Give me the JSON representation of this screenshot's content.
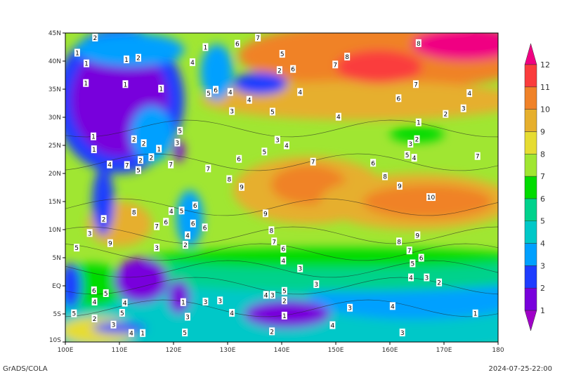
{
  "map": {
    "lon_range": [
      100,
      180
    ],
    "lat_range": [
      -10,
      45
    ],
    "lon_ticks": [
      {
        "v": 100,
        "label": "100E"
      },
      {
        "v": 110,
        "label": "110E"
      },
      {
        "v": 120,
        "label": "120E"
      },
      {
        "v": 130,
        "label": "130E"
      },
      {
        "v": 140,
        "label": "140E"
      },
      {
        "v": 150,
        "label": "150E"
      },
      {
        "v": 160,
        "label": "160E"
      },
      {
        "v": 170,
        "label": "170E"
      },
      {
        "v": 180,
        "label": "180"
      }
    ],
    "lat_ticks": [
      {
        "v": 45,
        "label": "45N"
      },
      {
        "v": 40,
        "label": "40N"
      },
      {
        "v": 35,
        "label": "35N"
      },
      {
        "v": 30,
        "label": "30N"
      },
      {
        "v": 25,
        "label": "25N"
      },
      {
        "v": 20,
        "label": "20N"
      },
      {
        "v": 15,
        "label": "15N"
      },
      {
        "v": 10,
        "label": "10N"
      },
      {
        "v": 5,
        "label": "5N"
      },
      {
        "v": 0,
        "label": "EQ"
      },
      {
        "v": -5,
        "label": "5S"
      },
      {
        "v": -10,
        "label": "10S"
      }
    ],
    "background_level": 7,
    "shaded_regions": [
      {
        "lon": 140,
        "lat": -5,
        "rx": 60,
        "ry": 8,
        "level": 4
      },
      {
        "lon": 165,
        "lat": -2,
        "rx": 20,
        "ry": 4,
        "level": 3
      },
      {
        "lon": 150,
        "lat": 2,
        "rx": 40,
        "ry": 3,
        "level": 5
      },
      {
        "lon": 150,
        "lat": 5,
        "rx": 35,
        "ry": 1.8,
        "level": 6
      },
      {
        "lon": 105,
        "lat": 0,
        "rx": 6,
        "ry": 4,
        "level": 6
      },
      {
        "lon": 106,
        "lat": -8,
        "rx": 7,
        "ry": 2.5,
        "level": 8
      },
      {
        "lon": 160,
        "lat": 41,
        "rx": 28,
        "ry": 6,
        "level": 10
      },
      {
        "lon": 155,
        "lat": 33,
        "rx": 30,
        "ry": 3.5,
        "level": 9
      },
      {
        "lon": 158,
        "lat": 39,
        "rx": 8,
        "ry": 3,
        "level": 11
      },
      {
        "lon": 174,
        "lat": 43,
        "rx": 10,
        "ry": 3,
        "level": 12
      },
      {
        "lon": 145,
        "lat": 17,
        "rx": 14,
        "ry": 6,
        "level": 9
      },
      {
        "lon": 145,
        "lat": 18,
        "rx": 7,
        "ry": 3.5,
        "level": 10
      },
      {
        "lon": 165,
        "lat": 15,
        "rx": 18,
        "ry": 5,
        "level": 9
      },
      {
        "lon": 167,
        "lat": 15,
        "rx": 12,
        "ry": 3,
        "level": 10
      },
      {
        "lon": 165,
        "lat": 27,
        "rx": 5,
        "ry": 1.5,
        "level": 6
      },
      {
        "lon": 110,
        "lat": 11,
        "rx": 6,
        "ry": 4,
        "level": 9
      },
      {
        "lon": 110,
        "lat": 33,
        "rx": 12,
        "ry": 13,
        "level": 2
      },
      {
        "lon": 110,
        "lat": 33,
        "rx": 9,
        "ry": 10,
        "level": 1
      },
      {
        "lon": 112,
        "lat": 42,
        "rx": 10,
        "ry": 3,
        "level": 3
      },
      {
        "lon": 116,
        "lat": 27,
        "rx": 4,
        "ry": 5,
        "level": 3
      },
      {
        "lon": 128,
        "lat": 38,
        "rx": 3,
        "ry": 5,
        "level": 3
      },
      {
        "lon": 136,
        "lat": 36,
        "rx": 5,
        "ry": 2,
        "level": 2
      },
      {
        "lon": 114,
        "lat": 1,
        "rx": 5,
        "ry": 4,
        "level": 1
      },
      {
        "lon": 141,
        "lat": -5,
        "rx": 8,
        "ry": 2.5,
        "level": 1
      },
      {
        "lon": 121,
        "lat": -2,
        "rx": 2,
        "ry": 3,
        "level": 1
      },
      {
        "lon": 101,
        "lat": 0,
        "rx": 2,
        "ry": 4,
        "level": 2
      },
      {
        "lon": 123,
        "lat": 12,
        "rx": 2.5,
        "ry": 5,
        "level": 3
      },
      {
        "lon": 107,
        "lat": 15,
        "rx": 2,
        "ry": 6,
        "level": 2
      },
      {
        "lon": 121,
        "lat": 24,
        "rx": 1,
        "ry": 2,
        "level": 1
      },
      {
        "lon": 110,
        "lat": -7.5,
        "rx": 5,
        "ry": 1,
        "level": 2
      }
    ],
    "contour_labels": [
      {
        "lon": 105.5,
        "lat": 44.6,
        "v": "2"
      },
      {
        "lon": 102.2,
        "lat": 41.5,
        "v": "1"
      },
      {
        "lon": 113.5,
        "lat": 40.6,
        "v": "2"
      },
      {
        "lon": 123.5,
        "lat": 39.8,
        "v": "4"
      },
      {
        "lon": 131.8,
        "lat": 43.1,
        "v": "6"
      },
      {
        "lon": 140.1,
        "lat": 41.3,
        "v": "5"
      },
      {
        "lon": 142.1,
        "lat": 38.6,
        "v": "6"
      },
      {
        "lon": 149.9,
        "lat": 39.4,
        "v": "7"
      },
      {
        "lon": 152.1,
        "lat": 40.8,
        "v": "8"
      },
      {
        "lon": 165.3,
        "lat": 43.2,
        "v": "8"
      },
      {
        "lon": 164.8,
        "lat": 35.9,
        "v": "7"
      },
      {
        "lon": 161.6,
        "lat": 33.4,
        "v": "6"
      },
      {
        "lon": 143.4,
        "lat": 34.5,
        "v": "4"
      },
      {
        "lon": 138.3,
        "lat": 31,
        "v": "5"
      },
      {
        "lon": 150.5,
        "lat": 30.1,
        "v": "4"
      },
      {
        "lon": 170.3,
        "lat": 30.6,
        "v": "2"
      },
      {
        "lon": 173.6,
        "lat": 31.6,
        "v": "3"
      },
      {
        "lon": 174.7,
        "lat": 32.8,
        "v": "4"
      },
      {
        "lon": 165.3,
        "lat": 29.1,
        "v": "1"
      },
      {
        "lon": 165,
        "lat": 26.1,
        "v": "2"
      },
      {
        "lon": 163.8,
        "lat": 25.3,
        "v": "3"
      },
      {
        "lon": 164.5,
        "lat": 24.3,
        "v": "4"
      },
      {
        "lon": 163.2,
        "lat": 23.3,
        "v": "5"
      },
      {
        "lon": 176.2,
        "lat": 23.1,
        "v": "7"
      },
      {
        "lon": 139.2,
        "lat": 26,
        "v": "3"
      },
      {
        "lon": 140.9,
        "lat": 25,
        "v": "4"
      },
      {
        "lon": 136.8,
        "lat": 23.9,
        "v": "5"
      },
      {
        "lon": 132.1,
        "lat": 22.6,
        "v": "6"
      },
      {
        "lon": 145.8,
        "lat": 22.1,
        "v": "7"
      },
      {
        "lon": 156.9,
        "lat": 21.9,
        "v": "6"
      },
      {
        "lon": 159.1,
        "lat": 19.5,
        "v": "8"
      },
      {
        "lon": 161.8,
        "lat": 17.8,
        "v": "9"
      },
      {
        "lon": 167.6,
        "lat": 15.8,
        "v": "10"
      },
      {
        "lon": 165.1,
        "lat": 9,
        "v": "9"
      },
      {
        "lon": 161.7,
        "lat": 7.9,
        "v": "8"
      },
      {
        "lon": 163.6,
        "lat": 6.3,
        "v": "7"
      },
      {
        "lon": 165.8,
        "lat": 5,
        "v": "6"
      },
      {
        "lon": 164.2,
        "lat": 4,
        "v": "5"
      },
      {
        "lon": 163.9,
        "lat": 3,
        "v": "4"
      },
      {
        "lon": 166.8,
        "lat": 1.5,
        "v": "3"
      },
      {
        "lon": 169.1,
        "lat": 0.6,
        "v": "2"
      },
      {
        "lon": 175.8,
        "lat": -4.9,
        "v": "1"
      },
      {
        "lon": 160.5,
        "lat": -3.6,
        "v": "4"
      },
      {
        "lon": 162.3,
        "lat": -8.3,
        "v": "3"
      },
      {
        "lon": 152.6,
        "lat": -3.9,
        "v": "3"
      },
      {
        "lon": 149.4,
        "lat": -7,
        "v": "4"
      },
      {
        "lon": 146.4,
        "lat": 0.3,
        "v": "3"
      },
      {
        "lon": 143.4,
        "lat": 3.1,
        "v": "3"
      },
      {
        "lon": 140.3,
        "lat": 4.5,
        "v": "4"
      },
      {
        "lon": 140.3,
        "lat": 6.6,
        "v": "6"
      },
      {
        "lon": 138.6,
        "lat": 7.9,
        "v": "7"
      },
      {
        "lon": 138.1,
        "lat": 9.9,
        "v": "8"
      },
      {
        "lon": 137,
        "lat": 12.9,
        "v": "9"
      },
      {
        "lon": 132.6,
        "lat": 17.6,
        "v": "9"
      },
      {
        "lon": 130.3,
        "lat": 19,
        "v": "8"
      },
      {
        "lon": 126.4,
        "lat": 20.9,
        "v": "7"
      },
      {
        "lon": 108.3,
        "lat": 7.6,
        "v": "9"
      },
      {
        "lon": 112.7,
        "lat": 13.1,
        "v": "8"
      },
      {
        "lon": 102.1,
        "lat": 6.8,
        "v": "5"
      },
      {
        "lon": 104.5,
        "lat": 9.4,
        "v": "3"
      },
      {
        "lon": 107.1,
        "lat": 11.9,
        "v": "2"
      },
      {
        "lon": 116.9,
        "lat": 6.8,
        "v": "3"
      },
      {
        "lon": 101.6,
        "lat": -4.9,
        "v": "5"
      },
      {
        "lon": 105.4,
        "lat": -5.8,
        "v": "2"
      },
      {
        "lon": 108.9,
        "lat": -6.9,
        "v": "3"
      },
      {
        "lon": 112.2,
        "lat": -8.4,
        "v": "4"
      },
      {
        "lon": 114.3,
        "lat": -8.4,
        "v": "1"
      },
      {
        "lon": 122.1,
        "lat": -8.3,
        "v": "5"
      },
      {
        "lon": 138.2,
        "lat": -8.1,
        "v": "2"
      },
      {
        "lon": 140.5,
        "lat": -0.9,
        "v": "5"
      },
      {
        "lon": 140.5,
        "lat": -2.6,
        "v": "2"
      },
      {
        "lon": 140.5,
        "lat": -3.8,
        "v": "1"
      },
      {
        "lon": 137.1,
        "lat": -1.6,
        "v": "4"
      },
      {
        "lon": 138.3,
        "lat": -1.6,
        "v": "3"
      },
      {
        "lon": 130.8,
        "lat": -4.8,
        "v": "4"
      },
      {
        "lon": 128.6,
        "lat": -2.6,
        "v": "3"
      },
      {
        "lon": 117.7,
        "lat": 35.1,
        "v": "1"
      },
      {
        "lon": 111.1,
        "lat": 35.9,
        "v": "1"
      },
      {
        "lon": 103.8,
        "lat": 36.1,
        "v": "1"
      },
      {
        "lon": 111.3,
        "lat": 40.3,
        "v": "1"
      },
      {
        "lon": 125.9,
        "lat": 42.5,
        "v": "1"
      },
      {
        "lon": 103.9,
        "lat": 39.6,
        "v": "1"
      },
      {
        "lon": 105.2,
        "lat": 26.6,
        "v": "1"
      },
      {
        "lon": 105.3,
        "lat": 24.3,
        "v": "1"
      },
      {
        "lon": 112.7,
        "lat": 26.1,
        "v": "2"
      },
      {
        "lon": 114.5,
        "lat": 25.4,
        "v": "2"
      },
      {
        "lon": 117.3,
        "lat": 24.4,
        "v": "1"
      },
      {
        "lon": 108.2,
        "lat": 21.6,
        "v": "4"
      },
      {
        "lon": 111.4,
        "lat": 21.5,
        "v": "7"
      },
      {
        "lon": 119.5,
        "lat": 21.6,
        "v": "7"
      },
      {
        "lon": 126.5,
        "lat": 34.3,
        "v": "5"
      },
      {
        "lon": 127.8,
        "lat": 34.9,
        "v": "6"
      },
      {
        "lon": 130.5,
        "lat": 34.5,
        "v": "4"
      },
      {
        "lon": 130.8,
        "lat": 31.1,
        "v": "3"
      },
      {
        "lon": 134,
        "lat": 33.1,
        "v": "4"
      },
      {
        "lon": 135.6,
        "lat": 44.5,
        "v": "7"
      },
      {
        "lon": 139.6,
        "lat": 38.4,
        "v": "2"
      },
      {
        "lon": 116.9,
        "lat": 10.6,
        "v": "7"
      },
      {
        "lon": 118.6,
        "lat": 11.4,
        "v": "6"
      },
      {
        "lon": 119.6,
        "lat": 11.8,
        "v": "4"
      },
      {
        "lon": 121.5,
        "lat": 13.4,
        "v": "5"
      },
      {
        "lon": 124,
        "lat": 14.3,
        "v": "6"
      },
      {
        "lon": 122.6,
        "lat": 9,
        "v": "4"
      },
      {
        "lon": 123.6,
        "lat": 9.6,
        "v": "6"
      },
      {
        "lon": 125.8,
        "lat": 10.4,
        "v": "6"
      },
      {
        "lon": 122.2,
        "lat": 7.3,
        "v": "2"
      },
      {
        "lon": 125.9,
        "lat": -2.8,
        "v": "3"
      },
      {
        "lon": 122.6,
        "lat": -5.5,
        "v": "3"
      },
      {
        "lon": 121.8,
        "lat": -4.4,
        "v": "1"
      },
      {
        "lon": 105.4,
        "lat": -2.8,
        "v": "4"
      },
      {
        "lon": 105.3,
        "lat": -0.8,
        "v": "6"
      },
      {
        "lon": 106.2,
        "lat": -1.3,
        "v": "5"
      },
      {
        "lon": 111,
        "lat": -3,
        "v": "4"
      },
      {
        "lon": 110.5,
        "lat": -3.3,
        "v": "5"
      },
      {
        "lon": 121.2,
        "lat": 27.6,
        "v": "5"
      },
      {
        "lon": 120.7,
        "lat": 27,
        "v": "3"
      },
      {
        "lon": 113.9,
        "lat": 22.4,
        "v": "2"
      },
      {
        "lon": 114.6,
        "lat": 22.9,
        "v": "2"
      },
      {
        "lon": 113.5,
        "lat": 22.1,
        "v": "5"
      }
    ]
  },
  "colorbar": {
    "labels": [
      "1",
      "2",
      "3",
      "4",
      "5",
      "6",
      "7",
      "8",
      "9",
      "10",
      "11",
      "12"
    ],
    "colors": [
      "#a000c8",
      "#7800dc",
      "#1e3cff",
      "#00a0ff",
      "#00c8c8",
      "#00d28c",
      "#00dc00",
      "#a0e632",
      "#e6dc32",
      "#e6af2d",
      "#f08228",
      "#fa3c3c",
      "#f00082"
    ]
  },
  "footer": {
    "left": "GrADS/COLA",
    "right": "2024-07-25-22:00"
  }
}
